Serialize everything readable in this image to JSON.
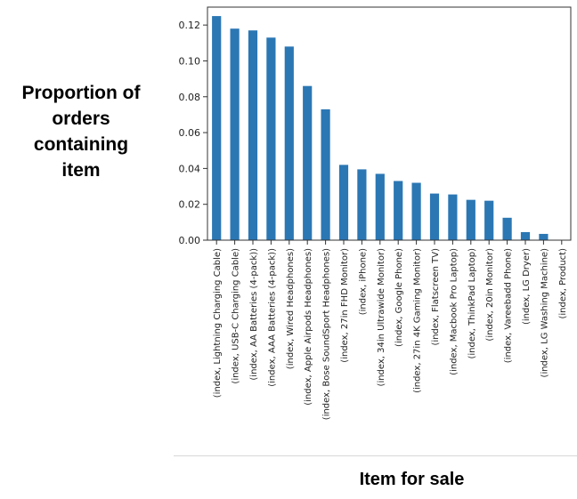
{
  "chart_data": {
    "type": "bar",
    "title": "",
    "xlabel": "Item for sale",
    "ylabel_lines": [
      "Proportion of",
      "orders",
      "containing",
      "item"
    ],
    "ylim": [
      0,
      0.13
    ],
    "yticks": [
      0.0,
      0.02,
      0.04,
      0.06,
      0.08,
      0.1,
      0.12
    ],
    "ytick_labels": [
      "0.00",
      "0.02",
      "0.04",
      "0.06",
      "0.08",
      "0.10",
      "0.12"
    ],
    "bar_color": "#2b77b4",
    "grid": false,
    "categories": [
      "(index, Lightning Charging Cable)",
      "(index, USB-C Charging Cable)",
      "(index, AA Batteries (4-pack))",
      "(index, AAA Batteries (4-pack))",
      "(index, Wired Headphones)",
      "(index, Apple Airpods Headphones)",
      "(index, Bose SoundSport Headphones)",
      "(index, 27in FHD Monitor)",
      "(index, iPhone)",
      "(index, 34in Ultrawide Monitor)",
      "(index, Google Phone)",
      "(index, 27in 4K Gaming Monitor)",
      "(index, Flatscreen TV)",
      "(index, Macbook Pro Laptop)",
      "(index, ThinkPad Laptop)",
      "(index, 20in Monitor)",
      "(index, Vareebadd Phone)",
      "(index, LG Dryer)",
      "(index, LG Washing Machine)",
      "(index, Product)"
    ],
    "values": [
      0.125,
      0.118,
      0.117,
      0.113,
      0.108,
      0.086,
      0.073,
      0.042,
      0.0395,
      0.037,
      0.033,
      0.032,
      0.026,
      0.0255,
      0.0225,
      0.022,
      0.0125,
      0.0045,
      0.0035,
      0.0002
    ]
  }
}
